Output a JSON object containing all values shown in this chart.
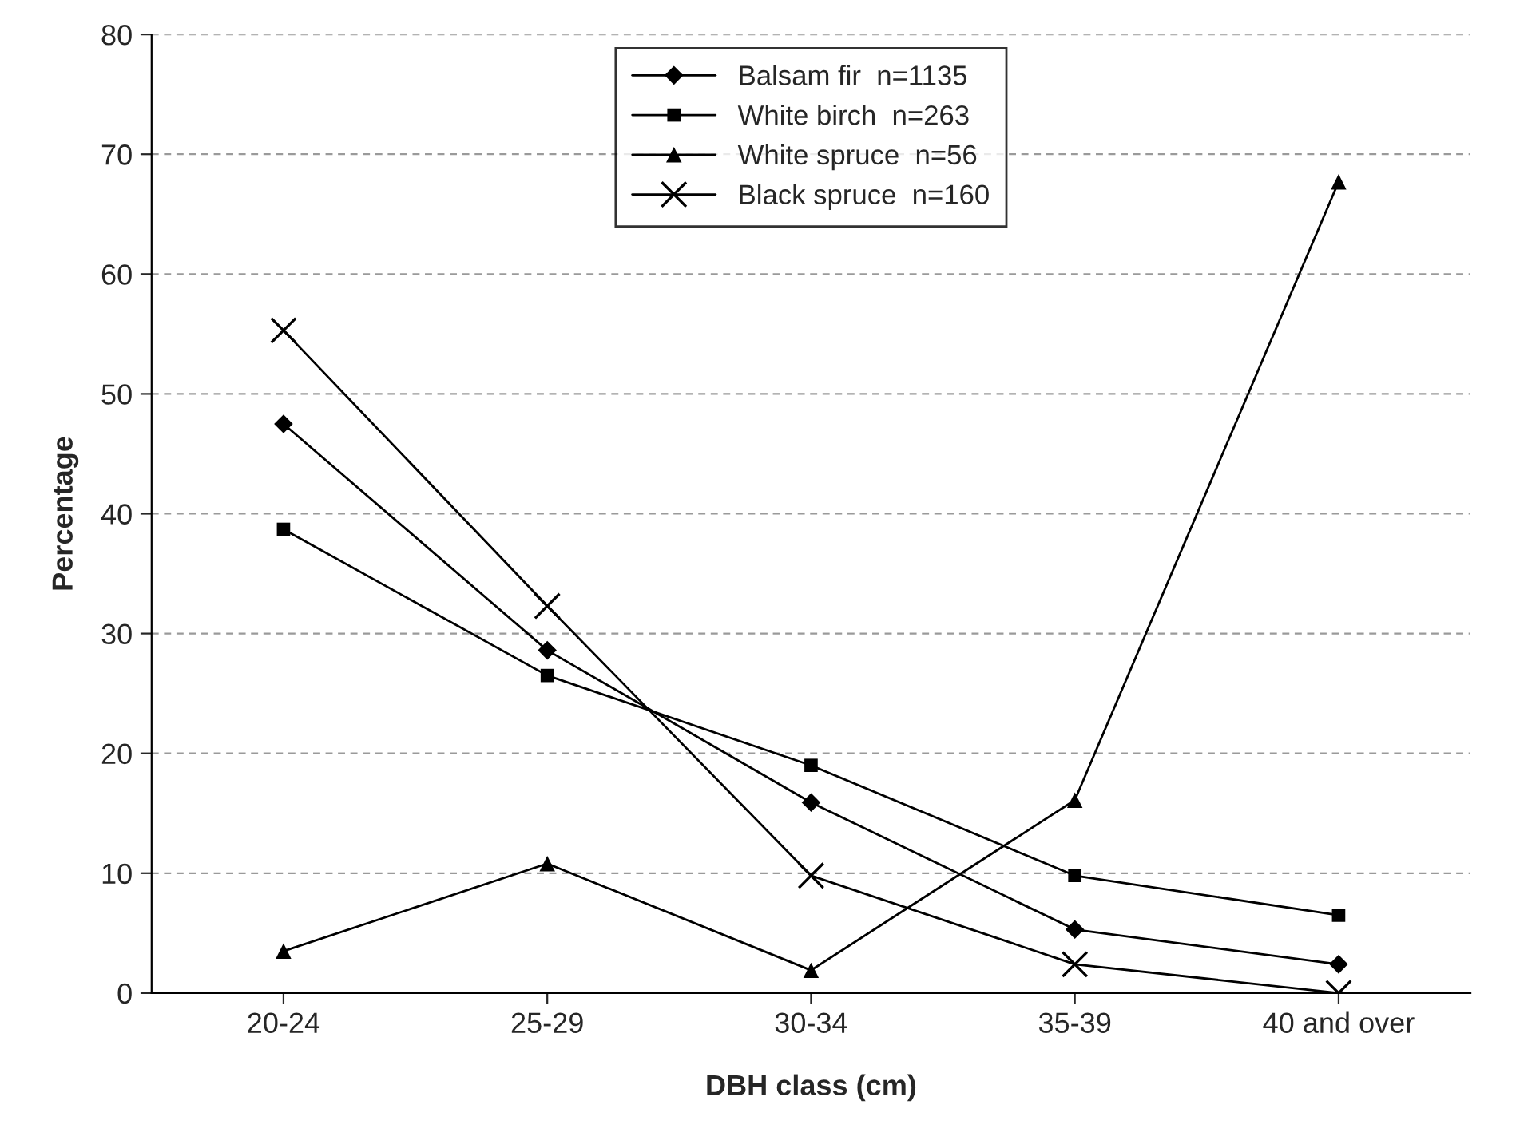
{
  "chart_data": {
    "type": "line",
    "xlabel": "DBH class (cm)",
    "ylabel": "Percentage",
    "categories": [
      "20-24",
      "25-29",
      "30-34",
      "35-39",
      "40 and over"
    ],
    "series": [
      {
        "name": "Balsam fir  n=1135",
        "color": "#000000",
        "marker": "diamond",
        "values": [
          47.5,
          28.6,
          15.9,
          5.3,
          2.4
        ]
      },
      {
        "name": "White birch  n=263",
        "color": "#000000",
        "marker": "square",
        "values": [
          38.7,
          26.5,
          19.0,
          9.8,
          6.5
        ]
      },
      {
        "name": "White spruce  n=56",
        "color": "#000000",
        "marker": "triangle",
        "values": [
          3.5,
          10.8,
          1.9,
          16.1,
          67.7
        ]
      },
      {
        "name": "Black spruce  n=160",
        "color": "#000000",
        "marker": "cross",
        "values": [
          55.3,
          32.3,
          9.8,
          2.4,
          0
        ]
      }
    ],
    "ylim": [
      0,
      80
    ],
    "yticks": [
      0,
      10,
      20,
      30,
      40,
      50,
      60,
      70,
      80
    ],
    "grid": "y",
    "legend": "top",
    "line_style": "solid"
  }
}
